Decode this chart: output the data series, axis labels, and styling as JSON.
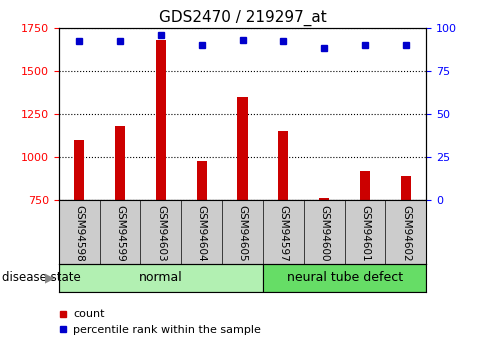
{
  "title": "GDS2470 / 219297_at",
  "categories": [
    "GSM94598",
    "GSM94599",
    "GSM94603",
    "GSM94604",
    "GSM94605",
    "GSM94597",
    "GSM94600",
    "GSM94601",
    "GSM94602"
  ],
  "count_values": [
    1100,
    1180,
    1680,
    975,
    1350,
    1150,
    760,
    920,
    890
  ],
  "percentile_values": [
    92,
    92,
    96,
    90,
    93,
    92,
    88,
    90,
    90
  ],
  "bar_color": "#cc0000",
  "dot_color": "#0000cc",
  "ylim_left": [
    750,
    1750
  ],
  "ylim_right": [
    0,
    100
  ],
  "yticks_left": [
    750,
    1000,
    1250,
    1500,
    1750
  ],
  "yticks_right": [
    0,
    25,
    50,
    75,
    100
  ],
  "normal_group": [
    "GSM94598",
    "GSM94599",
    "GSM94603",
    "GSM94604",
    "GSM94605"
  ],
  "disease_group": [
    "GSM94597",
    "GSM94600",
    "GSM94601",
    "GSM94602"
  ],
  "normal_label": "normal",
  "disease_label": "neural tube defect",
  "disease_state_label": "disease state",
  "legend_count": "count",
  "legend_percentile": "percentile rank within the sample",
  "normal_color": "#b2f0b2",
  "disease_color": "#66dd66",
  "xlabel_area_color": "#cccccc"
}
